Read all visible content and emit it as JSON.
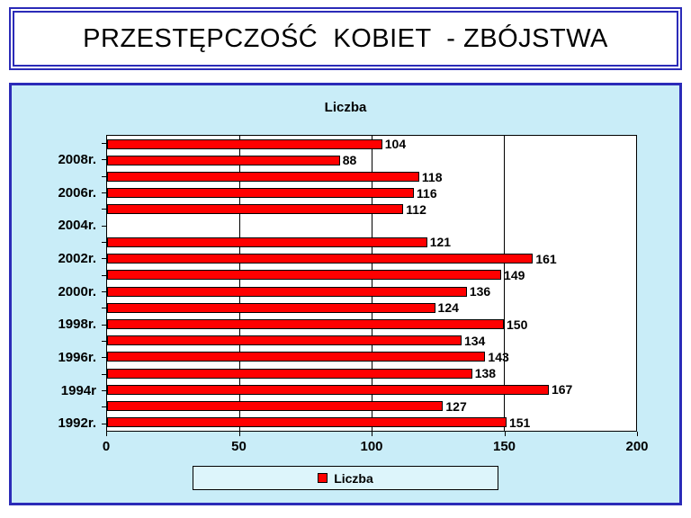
{
  "page": {
    "title": "PRZESTĘPCZOŚĆ  KOBIET  - ZBÓJSTWA"
  },
  "chart_data": {
    "type": "bar",
    "orientation": "horizontal",
    "title": "Liczba",
    "xlim": [
      0,
      200
    ],
    "x_ticks": [
      0,
      50,
      100,
      150,
      200
    ],
    "grid": "vertical-gridlines-at-x-ticks",
    "legend": {
      "position": "bottom",
      "entries": [
        {
          "label": "Liczba",
          "color": "#ff0000"
        }
      ]
    },
    "rows_top_to_bottom": [
      {
        "tick_label": "",
        "value": 104
      },
      {
        "tick_label": "2008r.",
        "value": 88
      },
      {
        "tick_label": "",
        "value": 118
      },
      {
        "tick_label": "2006r.",
        "value": 116
      },
      {
        "tick_label": "",
        "value": 112
      },
      {
        "tick_label": "2004r.",
        "value": null
      },
      {
        "tick_label": "",
        "value": 121
      },
      {
        "tick_label": "2002r.",
        "value": 161
      },
      {
        "tick_label": "",
        "value": 149
      },
      {
        "tick_label": "2000r.",
        "value": 136
      },
      {
        "tick_label": "",
        "value": 124
      },
      {
        "tick_label": "1998r.",
        "value": 150
      },
      {
        "tick_label": "",
        "value": 134
      },
      {
        "tick_label": "1996r.",
        "value": 143
      },
      {
        "tick_label": "",
        "value": 138
      },
      {
        "tick_label": "1994r",
        "value": 167
      },
      {
        "tick_label": "",
        "value": 127
      },
      {
        "tick_label": "1992r.",
        "value": 151
      }
    ],
    "colors": {
      "bar_fill": "#ff0000",
      "bar_border": "#000000",
      "plot_bg": "#ffffff",
      "panel_bg": "#c9edf8",
      "panel_border": "#2b2bb8",
      "legend_bg": "#ddf5fb"
    }
  }
}
